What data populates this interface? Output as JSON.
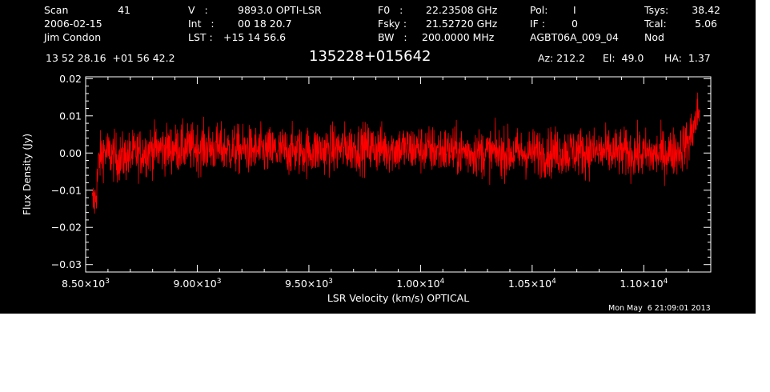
{
  "header": {
    "scan_label": "Scan",
    "scan_number": "41",
    "date": "2006-02-15",
    "observer": "Jim Condon",
    "v_label": "V   :",
    "v_value": "9893.0 OPTI-LSR",
    "int_label": "Int   :",
    "int_value": "00 18 20.7",
    "lst_label": "LST :",
    "lst_value": "+15 14 56.6",
    "f0_label": "F0   :",
    "f0_value": "22.23508 GHz",
    "fsky_label": "Fsky :",
    "fsky_value": "21.52720 GHz",
    "bw_label": "BW   :",
    "bw_value": "200.0000 MHz",
    "pol_label": "Pol:",
    "pol_value": "I",
    "if_label": "IF :",
    "if_value": "0",
    "project": "AGBT06A_009_04",
    "tsys_label": "Tsys:",
    "tsys_value": "38.42",
    "tcal_label": "Tcal:",
    "tcal_value": "5.06",
    "mode": "Nod",
    "coords": "13 52 28.16  +01 56 42.2",
    "source": "135228+015642",
    "az": "Az: 212.2",
    "el": "El:  49.0",
    "ha": "HA:  1.37"
  },
  "timestamp": "Mon May  6 21:09:01 2013",
  "colors": {
    "background": "#000000",
    "axes": "#ffffff",
    "trace": "#ff0000"
  },
  "chart_data": {
    "type": "line",
    "title": "135228+015642",
    "xlabel": "LSR Velocity (km/s) OPTICAL",
    "ylabel": "Flux Density (Jy)",
    "xlim": [
      8500,
      11300
    ],
    "ylim": [
      -0.032,
      0.0205
    ],
    "x_tick_labels": [
      {
        "value": 8500,
        "mantissa": "8.50",
        "exponent": "3"
      },
      {
        "value": 9000,
        "mantissa": "9.00",
        "exponent": "3"
      },
      {
        "value": 9500,
        "mantissa": "9.50",
        "exponent": "3"
      },
      {
        "value": 10000,
        "mantissa": "1.00",
        "exponent": "4"
      },
      {
        "value": 10500,
        "mantissa": "1.05",
        "exponent": "4"
      },
      {
        "value": 11000,
        "mantissa": "1.10",
        "exponent": "4"
      }
    ],
    "y_tick_labels": [
      {
        "value": 0.02,
        "label": "0.02"
      },
      {
        "value": 0.01,
        "label": "0.01"
      },
      {
        "value": 0.0,
        "label": "0.00"
      },
      {
        "value": -0.01,
        "label": "−0.01"
      },
      {
        "value": -0.02,
        "label": "−0.02"
      },
      {
        "value": -0.03,
        "label": "−0.03"
      }
    ],
    "series": [
      {
        "x_start": 8530,
        "x_end": 11250,
        "n_points": 2200,
        "envelope": [
          [
            8530,
            -0.014
          ],
          [
            8545,
            -0.012
          ],
          [
            8560,
            -0.002
          ],
          [
            8580,
            0.0005
          ],
          [
            8650,
            -0.0015
          ],
          [
            8800,
            0.001
          ],
          [
            9000,
            0.0015
          ],
          [
            9300,
            0.0005
          ],
          [
            9500,
            0.0005
          ],
          [
            9700,
            0.0015
          ],
          [
            10000,
            0.001
          ],
          [
            10300,
            0.0
          ],
          [
            10500,
            0.0
          ],
          [
            10700,
            0.0005
          ],
          [
            10900,
            0.0
          ],
          [
            11050,
            -0.0005
          ],
          [
            11150,
            0.0005
          ],
          [
            11200,
            0.003
          ],
          [
            11230,
            0.008
          ],
          [
            11250,
            0.012
          ]
        ],
        "noise_rms": 0.0033
      }
    ]
  }
}
